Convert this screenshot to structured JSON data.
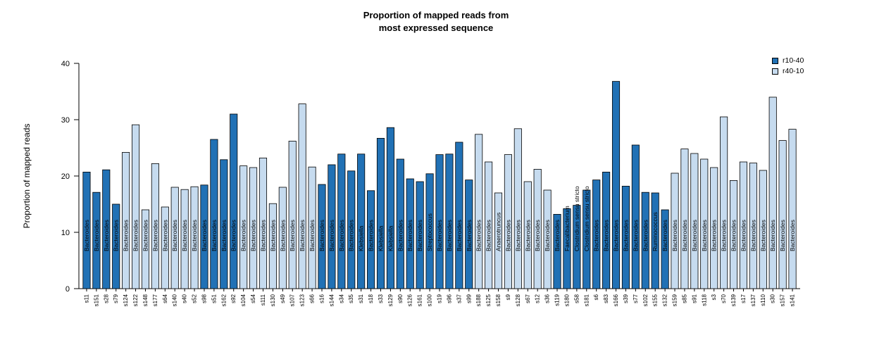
{
  "chart_data": {
    "type": "bar",
    "title": "Proportion of mapped reads from most expressed sequence",
    "title_lines": [
      "Proportion of mapped reads from",
      "most expressed sequence"
    ],
    "xlabel": "",
    "ylabel": "Proportion of mapped reads",
    "ylim": [
      0,
      40
    ],
    "yticks": [
      0,
      10,
      20,
      30,
      40
    ],
    "grid": false,
    "legend_position": "top-right",
    "series": [
      {
        "name": "r10-40",
        "color": "#2171B5"
      },
      {
        "name": "r40-10",
        "color": "#C6DBEF"
      }
    ],
    "bars": [
      {
        "sample": "s11",
        "value": 20.7,
        "group": "r10-40",
        "genus": "Bacteroides"
      },
      {
        "sample": "s151",
        "value": 17.1,
        "group": "r10-40",
        "genus": "Bacteroides"
      },
      {
        "sample": "s28",
        "value": 21.1,
        "group": "r10-40",
        "genus": "Bacteroides"
      },
      {
        "sample": "s79",
        "value": 15.0,
        "group": "r10-40",
        "genus": "Bacteroides"
      },
      {
        "sample": "s124",
        "value": 24.2,
        "group": "r40-10",
        "genus": "Bacteroides"
      },
      {
        "sample": "s122",
        "value": 29.1,
        "group": "r40-10",
        "genus": "Bacteroides"
      },
      {
        "sample": "s148",
        "value": 14.0,
        "group": "r40-10",
        "genus": "Bacteroides"
      },
      {
        "sample": "s177",
        "value": 22.2,
        "group": "r40-10",
        "genus": "Bacteroides"
      },
      {
        "sample": "s64",
        "value": 14.5,
        "group": "r40-10",
        "genus": "Bacteroides"
      },
      {
        "sample": "s140",
        "value": 18.0,
        "group": "r40-10",
        "genus": "Bacteroides"
      },
      {
        "sample": "s40",
        "value": 17.6,
        "group": "r40-10",
        "genus": "Bacteroides"
      },
      {
        "sample": "s52",
        "value": 18.1,
        "group": "r40-10",
        "genus": "Bacteroides"
      },
      {
        "sample": "s98",
        "value": 18.4,
        "group": "r10-40",
        "genus": "Bacteroides"
      },
      {
        "sample": "s51",
        "value": 26.5,
        "group": "r10-40",
        "genus": "Bacteroides"
      },
      {
        "sample": "s162",
        "value": 22.9,
        "group": "r10-40",
        "genus": "Bacteroides"
      },
      {
        "sample": "s92",
        "value": 31.0,
        "group": "r10-40",
        "genus": "Bacteroides"
      },
      {
        "sample": "s104",
        "value": 21.8,
        "group": "r40-10",
        "genus": "Bacteroides"
      },
      {
        "sample": "s54",
        "value": 21.5,
        "group": "r40-10",
        "genus": "Bacteroides"
      },
      {
        "sample": "s111",
        "value": 23.2,
        "group": "r40-10",
        "genus": "Bacteroides"
      },
      {
        "sample": "s130",
        "value": 15.1,
        "group": "r40-10",
        "genus": "Bacteroides"
      },
      {
        "sample": "s49",
        "value": 18.0,
        "group": "r40-10",
        "genus": "Bacteroides"
      },
      {
        "sample": "s107",
        "value": 26.2,
        "group": "r40-10",
        "genus": "Bacteroides"
      },
      {
        "sample": "s123",
        "value": 32.8,
        "group": "r40-10",
        "genus": "Bacteroides"
      },
      {
        "sample": "s66",
        "value": 21.6,
        "group": "r40-10",
        "genus": "Bacteroides"
      },
      {
        "sample": "s16",
        "value": 18.5,
        "group": "r10-40",
        "genus": "Bacteroides"
      },
      {
        "sample": "s144",
        "value": 22.0,
        "group": "r10-40",
        "genus": "Bacteroides"
      },
      {
        "sample": "s34",
        "value": 23.9,
        "group": "r10-40",
        "genus": "Bacteroides"
      },
      {
        "sample": "s35",
        "value": 20.9,
        "group": "r10-40",
        "genus": "Bacteroides"
      },
      {
        "sample": "s31",
        "value": 23.9,
        "group": "r10-40",
        "genus": "Klebsiella"
      },
      {
        "sample": "s18",
        "value": 17.4,
        "group": "r10-40",
        "genus": "Bacteroides"
      },
      {
        "sample": "s33",
        "value": 26.7,
        "group": "r10-40",
        "genus": "Klebsiella"
      },
      {
        "sample": "s129",
        "value": 28.6,
        "group": "r10-40",
        "genus": "Klebsiella"
      },
      {
        "sample": "s90",
        "value": 23.0,
        "group": "r10-40",
        "genus": "Bacteroides"
      },
      {
        "sample": "s126",
        "value": 19.5,
        "group": "r10-40",
        "genus": "Bacteroides"
      },
      {
        "sample": "s161",
        "value": 19.0,
        "group": "r10-40",
        "genus": "Bacteroides"
      },
      {
        "sample": "s100",
        "value": 20.4,
        "group": "r10-40",
        "genus": "Streptococcus"
      },
      {
        "sample": "s19",
        "value": 23.8,
        "group": "r10-40",
        "genus": "Bacteroides"
      },
      {
        "sample": "s96",
        "value": 23.9,
        "group": "r10-40",
        "genus": "Bacteroides"
      },
      {
        "sample": "s37",
        "value": 26.0,
        "group": "r10-40",
        "genus": "Bacteroides"
      },
      {
        "sample": "s99",
        "value": 19.3,
        "group": "r10-40",
        "genus": "Bacteroides"
      },
      {
        "sample": "s188",
        "value": 27.4,
        "group": "r40-10",
        "genus": "Bacteroides"
      },
      {
        "sample": "s125",
        "value": 22.5,
        "group": "r40-10",
        "genus": "Bacteroides"
      },
      {
        "sample": "s158",
        "value": 17.0,
        "group": "r40-10",
        "genus": "Anaerotruncus"
      },
      {
        "sample": "s9",
        "value": 23.8,
        "group": "r40-10",
        "genus": "Bacteroides"
      },
      {
        "sample": "s128",
        "value": 28.4,
        "group": "r40-10",
        "genus": "Bacteroides"
      },
      {
        "sample": "s67",
        "value": 19.0,
        "group": "r40-10",
        "genus": "Bacteroides"
      },
      {
        "sample": "s12",
        "value": 21.2,
        "group": "r40-10",
        "genus": "Bacteroides"
      },
      {
        "sample": "s36",
        "value": 17.5,
        "group": "r40-10",
        "genus": "Bacteroides"
      },
      {
        "sample": "s119",
        "value": 13.2,
        "group": "r10-40",
        "genus": "Bacteroides"
      },
      {
        "sample": "s180",
        "value": 14.2,
        "group": "r10-40",
        "genus": "Faecalibacterium"
      },
      {
        "sample": "s58",
        "value": 14.8,
        "group": "r10-40",
        "genus": "Clostridium sensu stricto"
      },
      {
        "sample": "s181",
        "value": 17.5,
        "group": "r10-40",
        "genus": "Clostridium sensu stricto"
      },
      {
        "sample": "s6",
        "value": 19.3,
        "group": "r10-40",
        "genus": "Bacteroides"
      },
      {
        "sample": "s83",
        "value": 20.7,
        "group": "r10-40",
        "genus": "Bacteroides"
      },
      {
        "sample": "s166",
        "value": 36.8,
        "group": "r10-40",
        "genus": "Bacteroides"
      },
      {
        "sample": "s39",
        "value": 18.2,
        "group": "r10-40",
        "genus": "Bacteroides"
      },
      {
        "sample": "s77",
        "value": 25.5,
        "group": "r10-40",
        "genus": "Bacteroides"
      },
      {
        "sample": "s102",
        "value": 17.1,
        "group": "r10-40",
        "genus": "Bacteroides"
      },
      {
        "sample": "s155",
        "value": 17.0,
        "group": "r10-40",
        "genus": "Ruminococcus"
      },
      {
        "sample": "s132",
        "value": 14.0,
        "group": "r10-40",
        "genus": "Bacteroides"
      },
      {
        "sample": "s159",
        "value": 20.5,
        "group": "r40-10",
        "genus": "Bacteroides"
      },
      {
        "sample": "s85",
        "value": 24.8,
        "group": "r40-10",
        "genus": "Bacteroides"
      },
      {
        "sample": "s91",
        "value": 24.0,
        "group": "r40-10",
        "genus": "Bacteroides"
      },
      {
        "sample": "s118",
        "value": 23.0,
        "group": "r40-10",
        "genus": "Bacteroides"
      },
      {
        "sample": "s3",
        "value": 21.5,
        "group": "r40-10",
        "genus": "Bacteroides"
      },
      {
        "sample": "s70",
        "value": 30.5,
        "group": "r40-10",
        "genus": "Bacteroides"
      },
      {
        "sample": "s139",
        "value": 19.2,
        "group": "r40-10",
        "genus": "Bacteroides"
      },
      {
        "sample": "s17",
        "value": 22.5,
        "group": "r40-10",
        "genus": "Bacteroides"
      },
      {
        "sample": "s137",
        "value": 22.3,
        "group": "r40-10",
        "genus": "Bacteroides"
      },
      {
        "sample": "s110",
        "value": 21.0,
        "group": "r40-10",
        "genus": "Bacteroides"
      },
      {
        "sample": "s30",
        "value": 34.0,
        "group": "r40-10",
        "genus": "Bacteroides"
      },
      {
        "sample": "s157",
        "value": 26.3,
        "group": "r40-10",
        "genus": "Bacteroides"
      },
      {
        "sample": "s141",
        "value": 28.3,
        "group": "r40-10",
        "genus": "Bacteroides"
      }
    ]
  }
}
